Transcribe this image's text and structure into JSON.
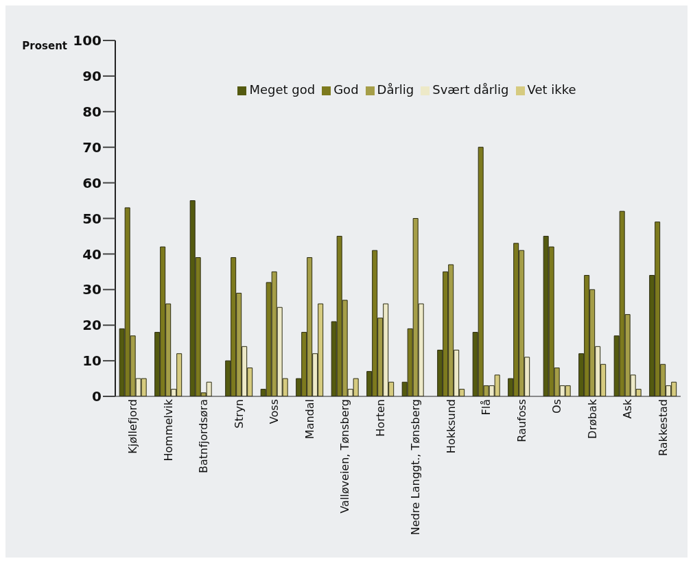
{
  "chart_data": {
    "type": "bar",
    "ylabel": "Prosent",
    "categories": [
      "Kjøllefjord",
      "Hommelvik",
      "Batnfjordsøra",
      "Stryn",
      "Voss",
      "Mandal",
      "Valløveien, Tønsberg",
      "Horten",
      "Nedre Langgt., Tønsberg",
      "Hokksund",
      "Flå",
      "Raufoss",
      "Os",
      "Drøbak",
      "Ask",
      "Rakkestad"
    ],
    "series": [
      {
        "name": "Meget god",
        "color": "#545a10",
        "values": [
          19,
          18,
          55,
          10,
          2,
          5,
          21,
          7,
          4,
          13,
          18,
          5,
          45,
          12,
          17,
          34
        ]
      },
      {
        "name": "God",
        "color": "#7d7a1e",
        "values": [
          53,
          42,
          39,
          39,
          32,
          18,
          45,
          41,
          19,
          35,
          70,
          43,
          42,
          34,
          52,
          49
        ]
      },
      {
        "name": "Dårlig",
        "color": "#a59e48",
        "values": [
          17,
          26,
          1,
          29,
          35,
          39,
          27,
          22,
          50,
          37,
          3,
          41,
          8,
          30,
          23,
          9
        ]
      },
      {
        "name": "Svært dårlig",
        "color": "#ede9c8",
        "values": [
          5,
          2,
          4,
          14,
          25,
          12,
          2,
          26,
          26,
          13,
          3,
          11,
          3,
          14,
          6,
          3
        ]
      },
      {
        "name": "Vet ikke",
        "color": "#d6cb80",
        "values": [
          5,
          12,
          0,
          8,
          5,
          26,
          5,
          4,
          0,
          2,
          6,
          0,
          3,
          9,
          2,
          4
        ]
      }
    ],
    "ylim": [
      0,
      100
    ],
    "yticks": [
      0,
      10,
      20,
      30,
      40,
      50,
      60,
      70,
      80,
      90,
      100
    ],
    "grid": false,
    "legend": "top"
  }
}
